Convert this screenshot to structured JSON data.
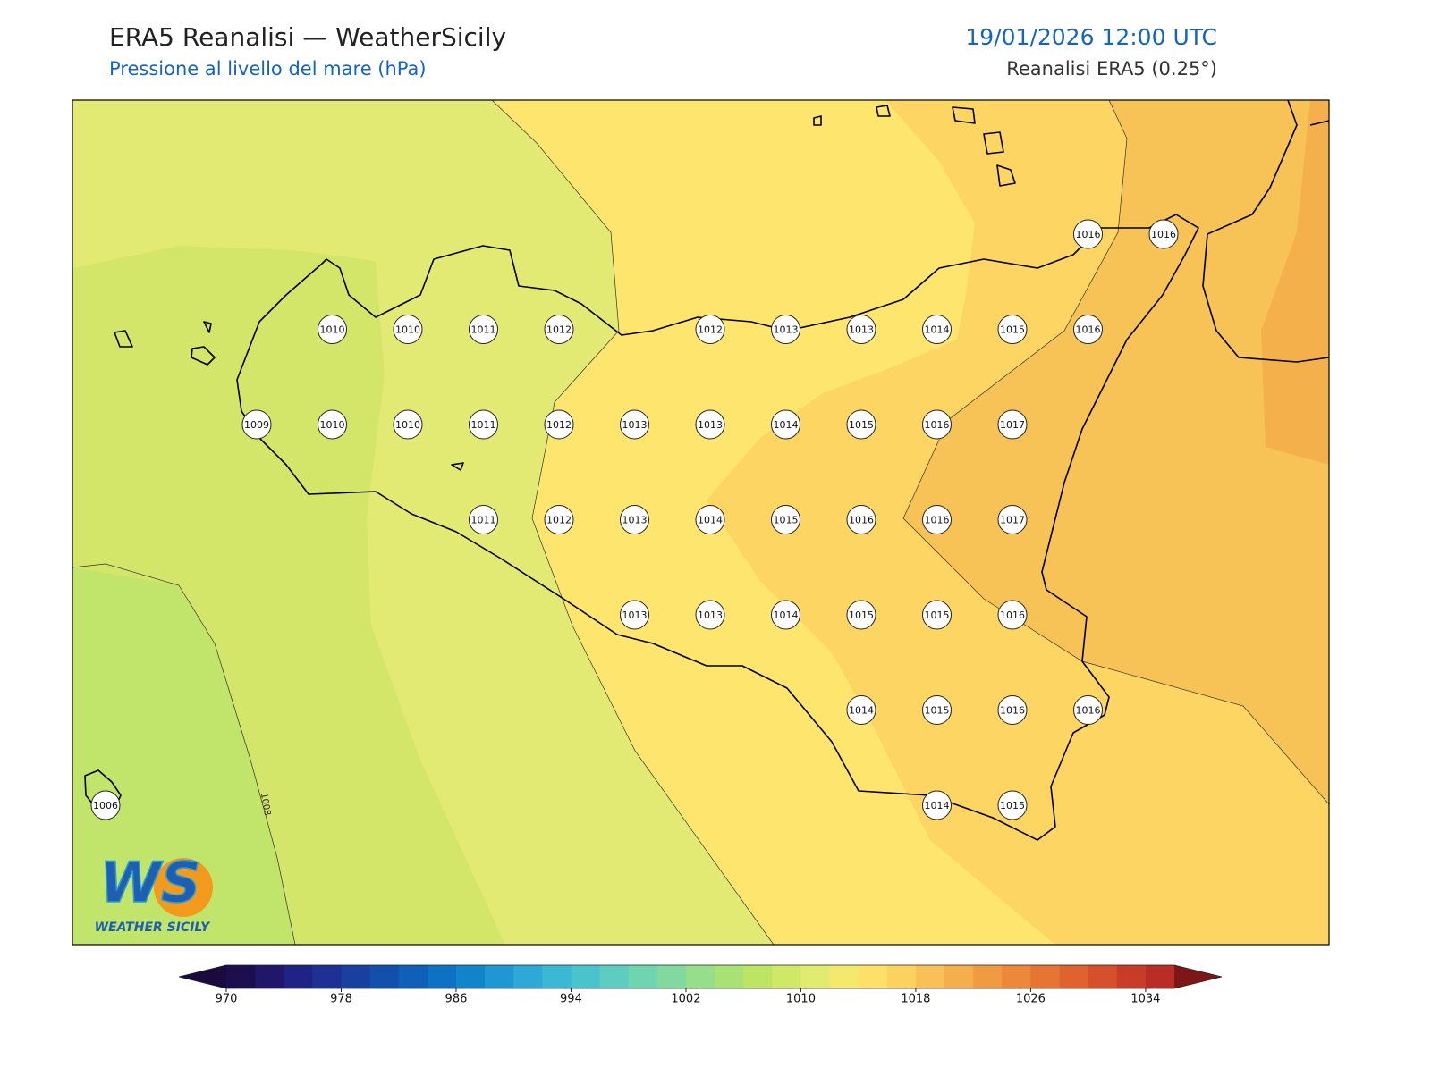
{
  "header": {
    "title": "ERA5 Reanalisi — WeatherSicily",
    "subtitle": "Pressione al livello del mare (hPa)",
    "date": "19/01/2026 12:00 UTC",
    "source": "Reanalisi ERA5 (0.25°)"
  },
  "map": {
    "contour_label": "1008",
    "stations": [
      [
        null,
        null,
        null,
        null,
        null,
        null,
        null,
        null,
        null,
        null,
        null,
        null,
        null,
        1016,
        1016
      ],
      [
        null,
        null,
        null,
        1010,
        1010,
        1011,
        1012,
        null,
        1012,
        1013,
        1013,
        1014,
        1015,
        1016,
        null
      ],
      [
        null,
        null,
        1009,
        1010,
        1010,
        1011,
        1012,
        1013,
        1013,
        1014,
        1015,
        1016,
        1017,
        null,
        null
      ],
      [
        null,
        null,
        null,
        null,
        null,
        1011,
        1012,
        1013,
        1014,
        1015,
        1016,
        1016,
        1017,
        null,
        null
      ],
      [
        null,
        null,
        null,
        null,
        null,
        null,
        null,
        1013,
        1013,
        1014,
        1015,
        1015,
        1016,
        null,
        null
      ],
      [
        null,
        null,
        null,
        null,
        null,
        null,
        null,
        null,
        null,
        null,
        1014,
        1015,
        1016,
        1016,
        null
      ],
      [
        1006,
        null,
        null,
        null,
        null,
        null,
        null,
        null,
        null,
        null,
        null,
        1014,
        1015,
        null,
        null
      ]
    ],
    "logo": {
      "mark": "WS",
      "name": "WEATHER SICILY"
    }
  },
  "colorbar": {
    "range": [
      970,
      1036
    ],
    "ticks": [
      970,
      978,
      986,
      994,
      1002,
      1010,
      1018,
      1026,
      1034
    ],
    "colors": [
      "#1d0e4d",
      "#20166a",
      "#1f2385",
      "#1c3193",
      "#17409f",
      "#1250ab",
      "#0f60b8",
      "#0d72c4",
      "#1284cc",
      "#2096d3",
      "#2ea8d6",
      "#3bb8d4",
      "#4ac4cc",
      "#5ccdc0",
      "#6fd4b0",
      "#82d99e",
      "#96de8a",
      "#a9e274",
      "#bce564",
      "#cfe866",
      "#e1eb70",
      "#f4e86e",
      "#fde067",
      "#fcd25f",
      "#f8c056",
      "#f4ae4c",
      "#f09b42",
      "#ec883a",
      "#e67534",
      "#df622f",
      "#d6502b",
      "#c93d28",
      "#ba2c26"
    ],
    "under": "#1a0a3d",
    "over": "#7e1618"
  }
}
